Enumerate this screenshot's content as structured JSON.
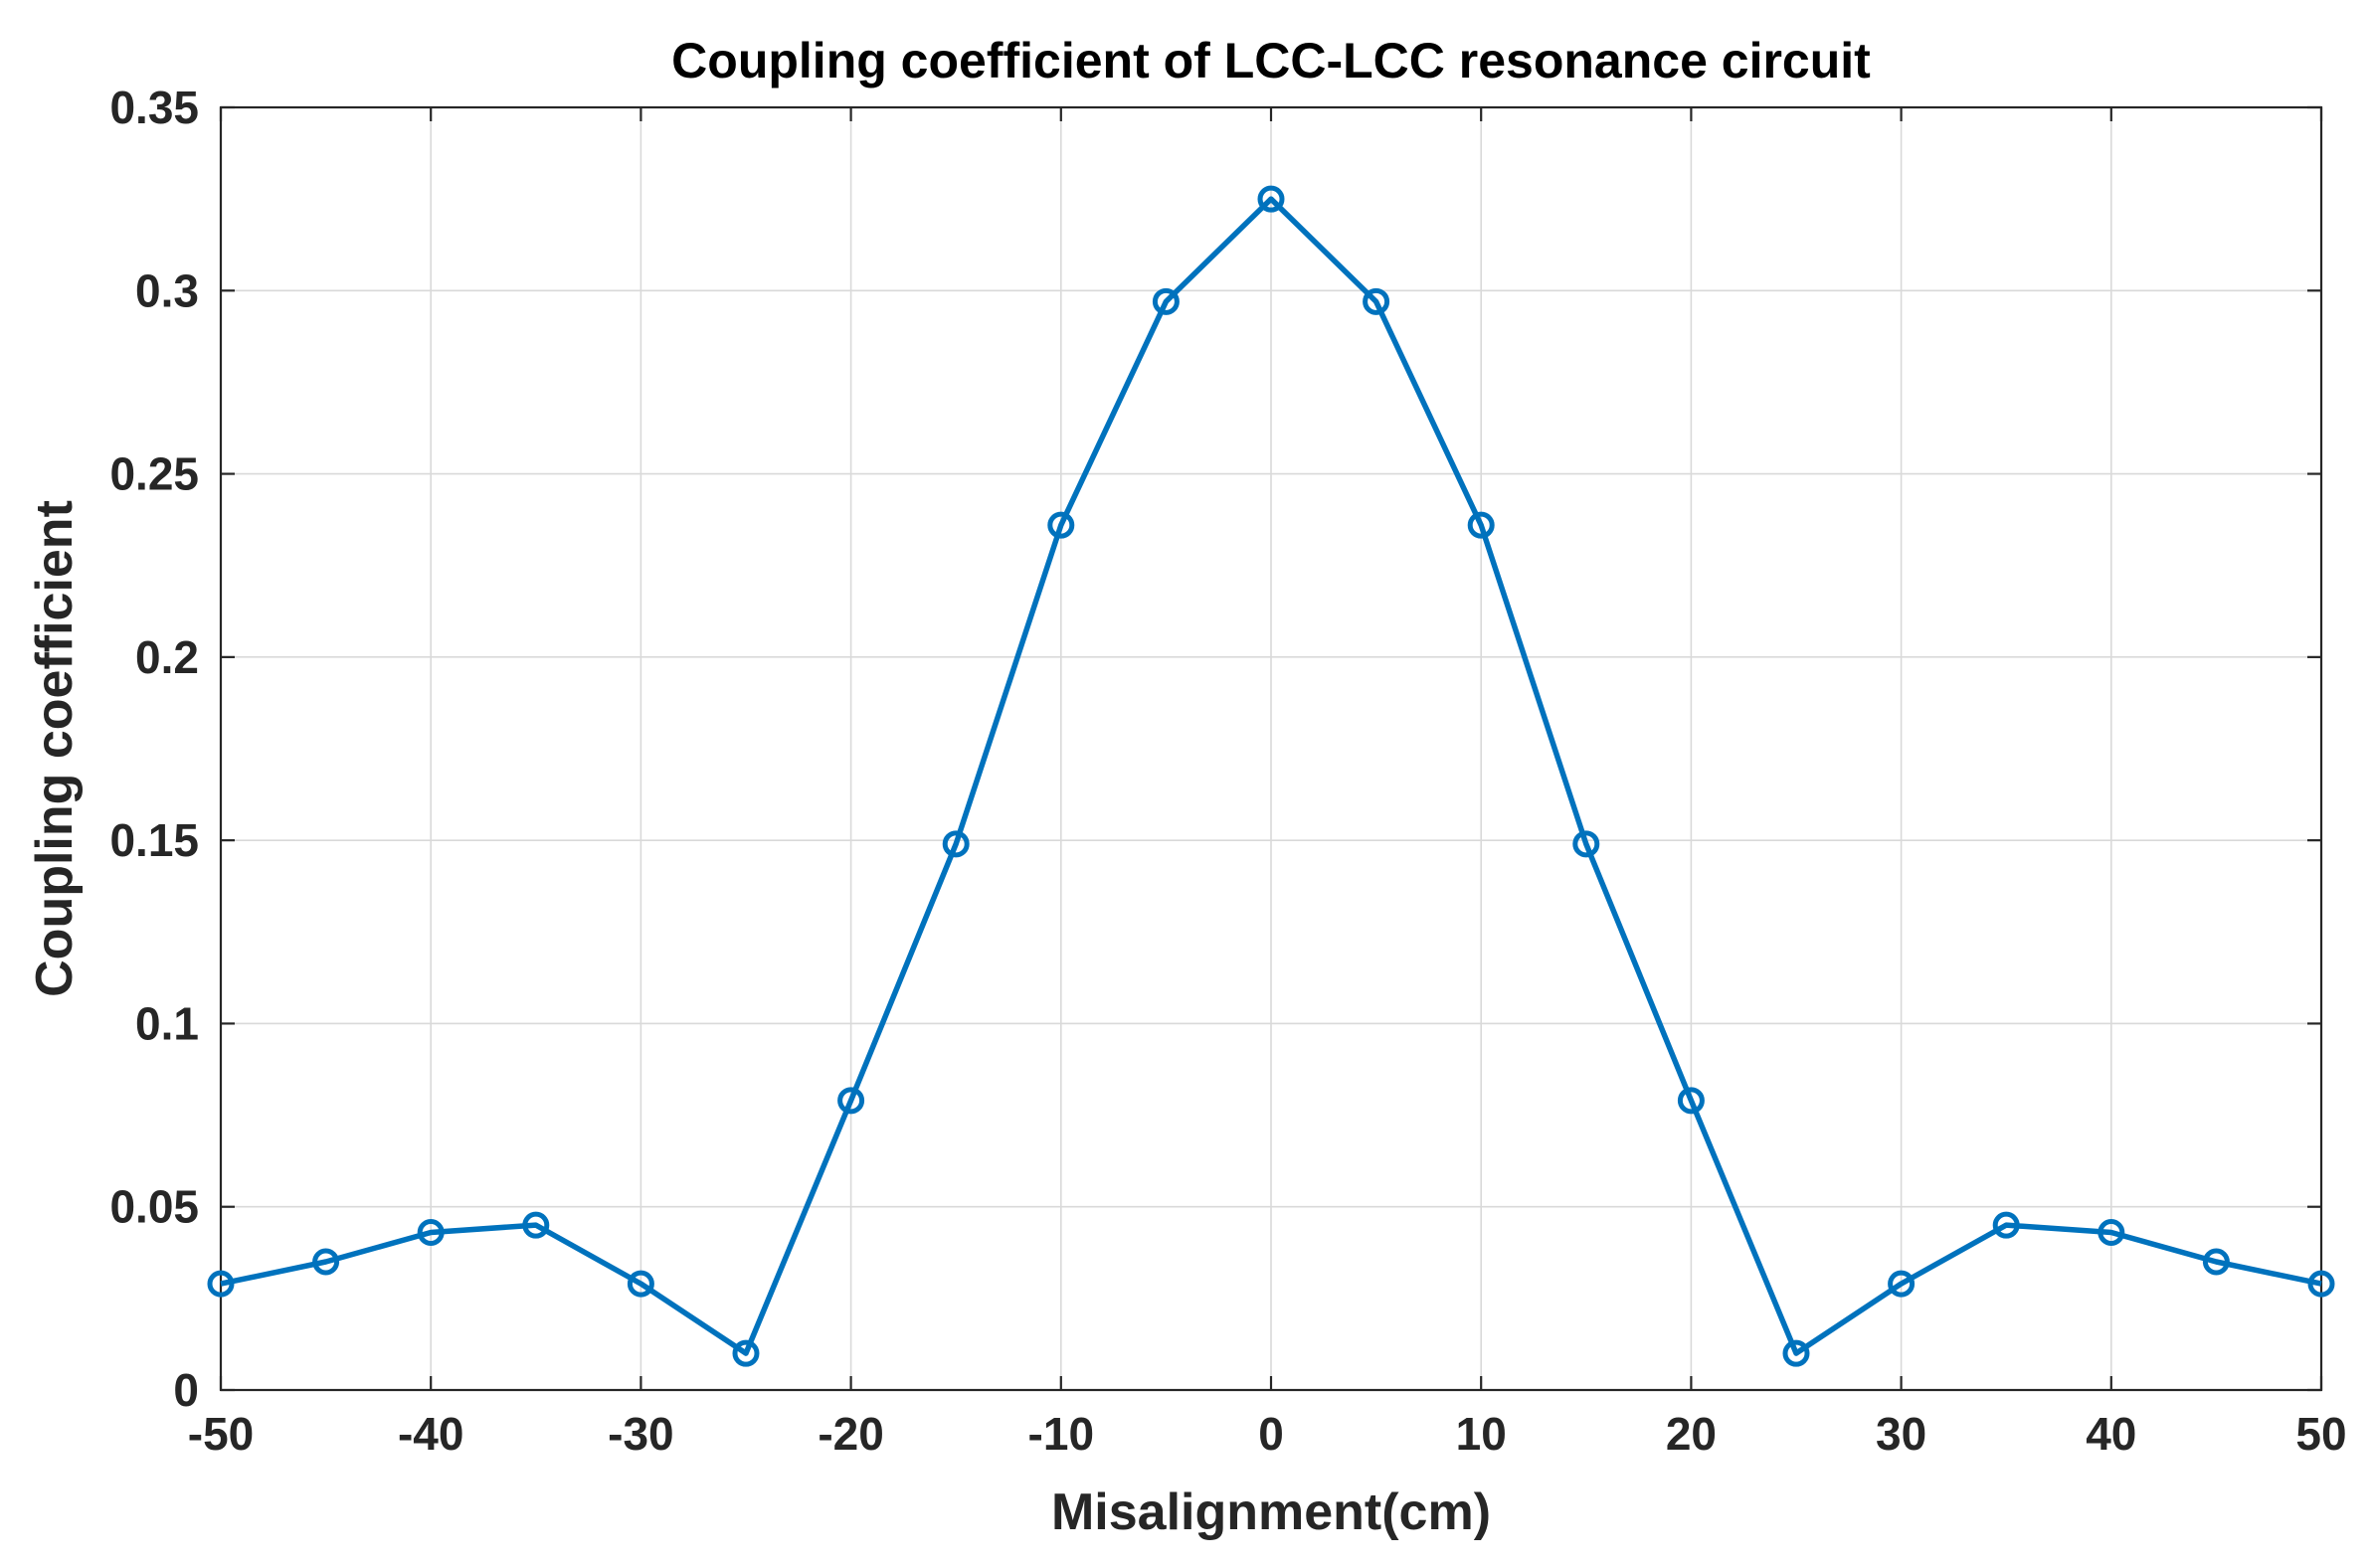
{
  "colors": {
    "series": "#0072BD",
    "axis": "#262626",
    "grid": "#d9d9d9",
    "background": "#ffffff"
  },
  "chart_data": {
    "type": "line",
    "title": "Coupling coefficient of LCC-LCC resonance circuit",
    "xlabel": "Misalignment(cm)",
    "ylabel": "Coupling coefficient",
    "xlim": [
      -50,
      50
    ],
    "ylim": [
      0,
      0.35
    ],
    "grid": true,
    "xticks": [
      -50,
      -40,
      -30,
      -20,
      -10,
      0,
      10,
      20,
      30,
      40,
      50
    ],
    "xtick_labels": [
      "-50",
      "-40",
      "-30",
      "-20",
      "-10",
      "0",
      "10",
      "20",
      "30",
      "40",
      "50"
    ],
    "yticks": [
      0,
      0.05,
      0.1,
      0.15,
      0.2,
      0.25,
      0.3,
      0.35
    ],
    "ytick_labels": [
      "0",
      "0.05",
      "0.1",
      "0.15",
      "0.2",
      "0.25",
      "0.3",
      "0.35"
    ],
    "series": [
      {
        "name": "Coupling coefficient",
        "marker": "circle",
        "x": [
          -50,
          -45,
          -40,
          -35,
          -30,
          -25,
          -20,
          -15,
          -10,
          -5,
          0,
          5,
          10,
          15,
          20,
          25,
          30,
          35,
          40,
          45,
          50
        ],
        "values": [
          0.029,
          0.035,
          0.043,
          0.045,
          0.029,
          0.01,
          0.079,
          0.149,
          0.236,
          0.297,
          0.325,
          0.297,
          0.236,
          0.149,
          0.079,
          0.01,
          0.029,
          0.045,
          0.043,
          0.035,
          0.029
        ]
      }
    ]
  }
}
